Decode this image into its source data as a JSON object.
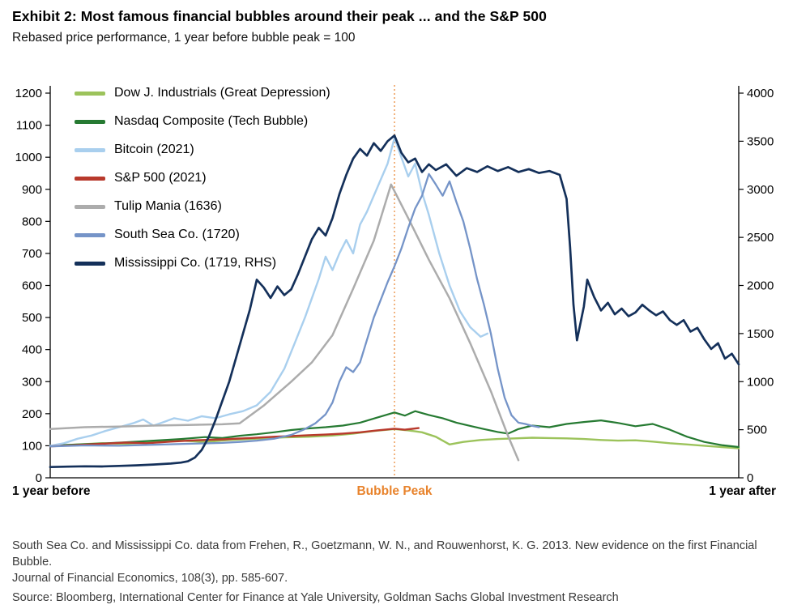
{
  "header": {
    "title": "Exhibit 2: Most famous financial bubbles around their peak ... and the S&P 500",
    "subtitle": "Rebased price performance, 1 year before bubble peak = 100"
  },
  "footnotes": {
    "line1": "South Sea Co. and Mississippi Co. data from Frehen, R., Goetzmann, W. N., and Rouwenhorst, K. G. 2013. New evidence on the first Financial Bubble.",
    "line2": "Journal of Financial Economics, 108(3), pp. 585-607.",
    "source": "Source: Bloomberg, International Center for Finance at Yale University, Goldman Sachs Global Investment Research"
  },
  "chart_data": {
    "type": "line",
    "title": "Exhibit 2: Most famous financial bubbles around their peak ... and the S&P 500",
    "subtitle": "Rebased price performance, 1 year before bubble peak = 100",
    "legend_position": "top-left inside plot",
    "grid": false,
    "x_axis": {
      "labels": [
        "1 year before",
        "Bubble Peak",
        "1 year after"
      ],
      "range": [
        -1,
        1
      ],
      "peak_x": 0,
      "peak_line_color": "#E8832C"
    },
    "y_left": {
      "range": [
        0,
        1200
      ],
      "tick_step": 100
    },
    "y_right": {
      "range": [
        0,
        4000
      ],
      "tick_step": 500
    },
    "series": [
      {
        "id": "dow",
        "name": "Dow J. Industrials (Great Depression)",
        "color": "#9CC35B",
        "axis": "left",
        "width": 2.4,
        "points": [
          [
            -1,
            100
          ],
          [
            -0.92,
            104
          ],
          [
            -0.85,
            108
          ],
          [
            -0.78,
            106
          ],
          [
            -0.7,
            112
          ],
          [
            -0.62,
            116
          ],
          [
            -0.55,
            112
          ],
          [
            -0.48,
            118
          ],
          [
            -0.4,
            122
          ],
          [
            -0.32,
            126
          ],
          [
            -0.25,
            128
          ],
          [
            -0.18,
            132
          ],
          [
            -0.12,
            138
          ],
          [
            -0.06,
            146
          ],
          [
            0,
            152
          ],
          [
            0.04,
            148
          ],
          [
            0.08,
            142
          ],
          [
            0.12,
            128
          ],
          [
            0.16,
            104
          ],
          [
            0.2,
            112
          ],
          [
            0.25,
            118
          ],
          [
            0.3,
            121
          ],
          [
            0.35,
            123
          ],
          [
            0.4,
            125
          ],
          [
            0.45,
            124
          ],
          [
            0.5,
            123
          ],
          [
            0.55,
            121
          ],
          [
            0.6,
            118
          ],
          [
            0.65,
            116
          ],
          [
            0.7,
            117
          ],
          [
            0.75,
            113
          ],
          [
            0.8,
            108
          ],
          [
            0.85,
            104
          ],
          [
            0.9,
            100
          ],
          [
            0.95,
            96
          ],
          [
            1,
            92
          ]
        ]
      },
      {
        "id": "nasdaq",
        "name": "Nasdaq Composite (Tech Bubble)",
        "color": "#267A32",
        "axis": "left",
        "width": 2.2,
        "points": [
          [
            -1,
            100
          ],
          [
            -0.92,
            104
          ],
          [
            -0.85,
            107
          ],
          [
            -0.78,
            111
          ],
          [
            -0.7,
            116
          ],
          [
            -0.62,
            121
          ],
          [
            -0.55,
            127
          ],
          [
            -0.5,
            124
          ],
          [
            -0.45,
            131
          ],
          [
            -0.4,
            136
          ],
          [
            -0.35,
            142
          ],
          [
            -0.3,
            149
          ],
          [
            -0.25,
            154
          ],
          [
            -0.2,
            158
          ],
          [
            -0.15,
            163
          ],
          [
            -0.1,
            172
          ],
          [
            -0.05,
            188
          ],
          [
            0,
            204
          ],
          [
            0.03,
            194
          ],
          [
            0.06,
            208
          ],
          [
            0.1,
            196
          ],
          [
            0.14,
            186
          ],
          [
            0.18,
            172
          ],
          [
            0.22,
            162
          ],
          [
            0.26,
            152
          ],
          [
            0.3,
            143
          ],
          [
            0.33,
            138
          ],
          [
            0.36,
            152
          ],
          [
            0.4,
            163
          ],
          [
            0.45,
            158
          ],
          [
            0.5,
            168
          ],
          [
            0.55,
            174
          ],
          [
            0.6,
            179
          ],
          [
            0.65,
            171
          ],
          [
            0.7,
            161
          ],
          [
            0.75,
            168
          ],
          [
            0.8,
            150
          ],
          [
            0.85,
            128
          ],
          [
            0.9,
            112
          ],
          [
            0.95,
            102
          ],
          [
            1,
            96
          ]
        ]
      },
      {
        "id": "bitcoin",
        "name": "Bitcoin (2021)",
        "color": "#A9CFEE",
        "axis": "left",
        "width": 2.4,
        "points": [
          [
            -1,
            100
          ],
          [
            -0.96,
            108
          ],
          [
            -0.92,
            122
          ],
          [
            -0.88,
            132
          ],
          [
            -0.84,
            146
          ],
          [
            -0.8,
            158
          ],
          [
            -0.76,
            170
          ],
          [
            -0.73,
            182
          ],
          [
            -0.7,
            163
          ],
          [
            -0.67,
            174
          ],
          [
            -0.64,
            186
          ],
          [
            -0.6,
            178
          ],
          [
            -0.56,
            192
          ],
          [
            -0.52,
            186
          ],
          [
            -0.48,
            198
          ],
          [
            -0.44,
            208
          ],
          [
            -0.4,
            226
          ],
          [
            -0.36,
            268
          ],
          [
            -0.32,
            340
          ],
          [
            -0.29,
            420
          ],
          [
            -0.26,
            500
          ],
          [
            -0.24,
            560
          ],
          [
            -0.22,
            620
          ],
          [
            -0.2,
            690
          ],
          [
            -0.18,
            648
          ],
          [
            -0.16,
            700
          ],
          [
            -0.14,
            742
          ],
          [
            -0.12,
            700
          ],
          [
            -0.1,
            790
          ],
          [
            -0.08,
            830
          ],
          [
            -0.06,
            880
          ],
          [
            -0.04,
            930
          ],
          [
            -0.02,
            980
          ],
          [
            0,
            1060
          ],
          [
            0.02,
            1000
          ],
          [
            0.04,
            940
          ],
          [
            0.06,
            980
          ],
          [
            0.08,
            890
          ],
          [
            0.1,
            820
          ],
          [
            0.13,
            700
          ],
          [
            0.16,
            600
          ],
          [
            0.19,
            520
          ],
          [
            0.22,
            470
          ],
          [
            0.25,
            440
          ],
          [
            0.27,
            450
          ]
        ]
      },
      {
        "id": "sp500",
        "name": "S&P 500 (2021)",
        "color": "#B8392C",
        "axis": "left",
        "width": 2.4,
        "points": [
          [
            -1,
            98
          ],
          [
            -0.92,
            102
          ],
          [
            -0.85,
            106
          ],
          [
            -0.78,
            110
          ],
          [
            -0.72,
            108
          ],
          [
            -0.65,
            113
          ],
          [
            -0.58,
            117
          ],
          [
            -0.5,
            120
          ],
          [
            -0.42,
            124
          ],
          [
            -0.35,
            128
          ],
          [
            -0.3,
            130
          ],
          [
            -0.25,
            133
          ],
          [
            -0.2,
            135
          ],
          [
            -0.15,
            138
          ],
          [
            -0.1,
            142
          ],
          [
            -0.05,
            148
          ],
          [
            0,
            153
          ],
          [
            0.03,
            150
          ],
          [
            0.07,
            155
          ]
        ]
      },
      {
        "id": "tulip",
        "name": "Tulip Mania (1636)",
        "color": "#ACACAC",
        "axis": "left",
        "width": 2.5,
        "points": [
          [
            -1,
            152
          ],
          [
            -0.9,
            158
          ],
          [
            -0.8,
            160
          ],
          [
            -0.7,
            163
          ],
          [
            -0.6,
            165
          ],
          [
            -0.5,
            167
          ],
          [
            -0.45,
            170
          ],
          [
            -0.38,
            225
          ],
          [
            -0.3,
            300
          ],
          [
            -0.24,
            360
          ],
          [
            -0.18,
            445
          ],
          [
            -0.12,
            590
          ],
          [
            -0.06,
            740
          ],
          [
            -0.01,
            915
          ],
          [
            0.04,
            810
          ],
          [
            0.1,
            680
          ],
          [
            0.16,
            560
          ],
          [
            0.22,
            420
          ],
          [
            0.28,
            270
          ],
          [
            0.33,
            130
          ],
          [
            0.36,
            55
          ]
        ]
      },
      {
        "id": "southsea",
        "name": "South Sea Co. (1720)",
        "color": "#7594C8",
        "axis": "left",
        "width": 2.3,
        "points": [
          [
            -1,
            98
          ],
          [
            -0.9,
            101
          ],
          [
            -0.8,
            100
          ],
          [
            -0.7,
            103
          ],
          [
            -0.6,
            106
          ],
          [
            -0.5,
            109
          ],
          [
            -0.45,
            112
          ],
          [
            -0.4,
            116
          ],
          [
            -0.35,
            122
          ],
          [
            -0.3,
            134
          ],
          [
            -0.26,
            152
          ],
          [
            -0.23,
            170
          ],
          [
            -0.2,
            198
          ],
          [
            -0.18,
            235
          ],
          [
            -0.16,
            300
          ],
          [
            -0.14,
            345
          ],
          [
            -0.12,
            330
          ],
          [
            -0.1,
            360
          ],
          [
            -0.08,
            430
          ],
          [
            -0.06,
            500
          ],
          [
            -0.04,
            555
          ],
          [
            -0.02,
            610
          ],
          [
            0,
            660
          ],
          [
            0.02,
            715
          ],
          [
            0.04,
            780
          ],
          [
            0.06,
            840
          ],
          [
            0.08,
            880
          ],
          [
            0.1,
            948
          ],
          [
            0.12,
            915
          ],
          [
            0.14,
            880
          ],
          [
            0.16,
            925
          ],
          [
            0.18,
            860
          ],
          [
            0.2,
            800
          ],
          [
            0.22,
            715
          ],
          [
            0.24,
            620
          ],
          [
            0.26,
            540
          ],
          [
            0.28,
            450
          ],
          [
            0.3,
            340
          ],
          [
            0.32,
            250
          ],
          [
            0.34,
            195
          ],
          [
            0.36,
            172
          ],
          [
            0.38,
            168
          ],
          [
            0.4,
            162
          ],
          [
            0.42,
            158
          ]
        ]
      },
      {
        "id": "mississippi",
        "name": "Mississippi Co. (1719, RHS)",
        "color": "#14305A",
        "axis": "right",
        "width": 2.7,
        "points": [
          [
            -1,
            112
          ],
          [
            -0.95,
            116
          ],
          [
            -0.9,
            120
          ],
          [
            -0.85,
            118
          ],
          [
            -0.8,
            124
          ],
          [
            -0.75,
            130
          ],
          [
            -0.7,
            138
          ],
          [
            -0.65,
            148
          ],
          [
            -0.62,
            158
          ],
          [
            -0.6,
            172
          ],
          [
            -0.58,
            210
          ],
          [
            -0.56,
            290
          ],
          [
            -0.54,
            420
          ],
          [
            -0.52,
            600
          ],
          [
            -0.5,
            800
          ],
          [
            -0.48,
            1000
          ],
          [
            -0.46,
            1250
          ],
          [
            -0.44,
            1500
          ],
          [
            -0.42,
            1750
          ],
          [
            -0.4,
            2060
          ],
          [
            -0.38,
            1980
          ],
          [
            -0.36,
            1870
          ],
          [
            -0.34,
            1990
          ],
          [
            -0.32,
            1900
          ],
          [
            -0.3,
            1960
          ],
          [
            -0.28,
            2120
          ],
          [
            -0.26,
            2300
          ],
          [
            -0.24,
            2480
          ],
          [
            -0.22,
            2600
          ],
          [
            -0.2,
            2520
          ],
          [
            -0.18,
            2700
          ],
          [
            -0.16,
            2950
          ],
          [
            -0.14,
            3150
          ],
          [
            -0.12,
            3320
          ],
          [
            -0.1,
            3420
          ],
          [
            -0.08,
            3350
          ],
          [
            -0.06,
            3480
          ],
          [
            -0.04,
            3400
          ],
          [
            -0.02,
            3500
          ],
          [
            0,
            3560
          ],
          [
            0.02,
            3380
          ],
          [
            0.04,
            3280
          ],
          [
            0.06,
            3320
          ],
          [
            0.08,
            3180
          ],
          [
            0.1,
            3260
          ],
          [
            0.12,
            3200
          ],
          [
            0.15,
            3260
          ],
          [
            0.18,
            3140
          ],
          [
            0.21,
            3220
          ],
          [
            0.24,
            3180
          ],
          [
            0.27,
            3240
          ],
          [
            0.3,
            3190
          ],
          [
            0.33,
            3230
          ],
          [
            0.36,
            3180
          ],
          [
            0.39,
            3210
          ],
          [
            0.42,
            3170
          ],
          [
            0.45,
            3190
          ],
          [
            0.48,
            3150
          ],
          [
            0.5,
            2900
          ],
          [
            0.51,
            2400
          ],
          [
            0.52,
            1800
          ],
          [
            0.53,
            1430
          ],
          [
            0.55,
            1780
          ],
          [
            0.56,
            2060
          ],
          [
            0.58,
            1880
          ],
          [
            0.6,
            1740
          ],
          [
            0.62,
            1820
          ],
          [
            0.64,
            1700
          ],
          [
            0.66,
            1760
          ],
          [
            0.68,
            1680
          ],
          [
            0.7,
            1720
          ],
          [
            0.72,
            1800
          ],
          [
            0.74,
            1740
          ],
          [
            0.76,
            1690
          ],
          [
            0.78,
            1730
          ],
          [
            0.8,
            1640
          ],
          [
            0.82,
            1590
          ],
          [
            0.84,
            1640
          ],
          [
            0.86,
            1520
          ],
          [
            0.88,
            1560
          ],
          [
            0.9,
            1440
          ],
          [
            0.92,
            1340
          ],
          [
            0.94,
            1400
          ],
          [
            0.96,
            1240
          ],
          [
            0.98,
            1290
          ],
          [
            1,
            1180
          ]
        ]
      }
    ]
  }
}
